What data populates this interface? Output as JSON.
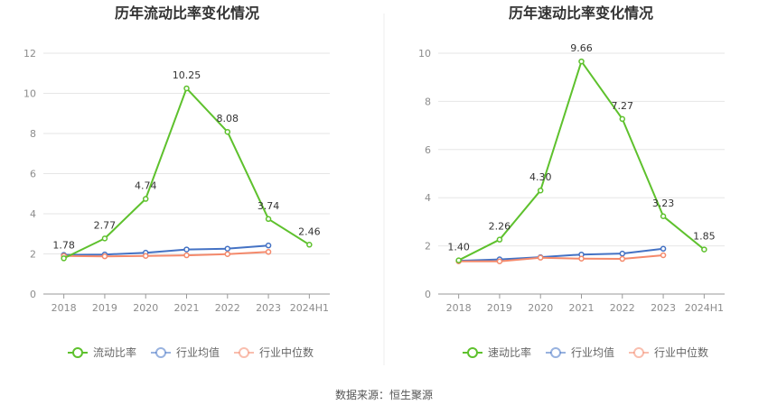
{
  "source_label": "数据来源：恒生聚源",
  "colors": {
    "main": "#5ec12d",
    "avg": "#4472c4",
    "median": "#f4896b",
    "grid": "#e6e6e6",
    "axis": "#999999"
  },
  "chart_data": [
    {
      "type": "line",
      "title": "历年流动比率变化情况",
      "categories": [
        "2018",
        "2019",
        "2020",
        "2021",
        "2022",
        "2023",
        "2024H1"
      ],
      "ylim": [
        0,
        12
      ],
      "yticks": [
        0,
        2,
        4,
        6,
        8,
        10,
        12
      ],
      "grid": true,
      "legend_position": "bottom",
      "series": [
        {
          "name": "流动比率",
          "role": "main",
          "values": [
            1.78,
            2.77,
            4.74,
            10.25,
            8.08,
            3.74,
            2.46
          ],
          "labels": [
            "1.78",
            "2.77",
            "4.74",
            "10.25",
            "8.08",
            "3.74",
            "2.46"
          ]
        },
        {
          "name": "行业均值",
          "role": "avg",
          "values": [
            1.95,
            1.97,
            2.06,
            2.22,
            2.26,
            2.42,
            null
          ]
        },
        {
          "name": "行业中位数",
          "role": "median",
          "values": [
            1.9,
            1.88,
            1.9,
            1.93,
            1.99,
            2.1,
            null
          ]
        }
      ]
    },
    {
      "type": "line",
      "title": "历年速动比率变化情况",
      "categories": [
        "2018",
        "2019",
        "2020",
        "2021",
        "2022",
        "2023",
        "2024H1"
      ],
      "ylim": [
        0,
        10
      ],
      "yticks": [
        0,
        2,
        4,
        6,
        8,
        10
      ],
      "grid": true,
      "legend_position": "bottom",
      "series": [
        {
          "name": "速动比率",
          "role": "main",
          "values": [
            1.4,
            2.26,
            4.3,
            9.66,
            7.27,
            3.23,
            1.85
          ],
          "labels": [
            "1.40",
            "2.26",
            "4.30",
            "9.66",
            "7.27",
            "3.23",
            "1.85"
          ]
        },
        {
          "name": "行业均值",
          "role": "avg",
          "values": [
            1.38,
            1.44,
            1.53,
            1.64,
            1.68,
            1.88,
            null
          ]
        },
        {
          "name": "行业中位数",
          "role": "median",
          "values": [
            1.36,
            1.36,
            1.51,
            1.47,
            1.46,
            1.61,
            null
          ]
        }
      ]
    }
  ]
}
